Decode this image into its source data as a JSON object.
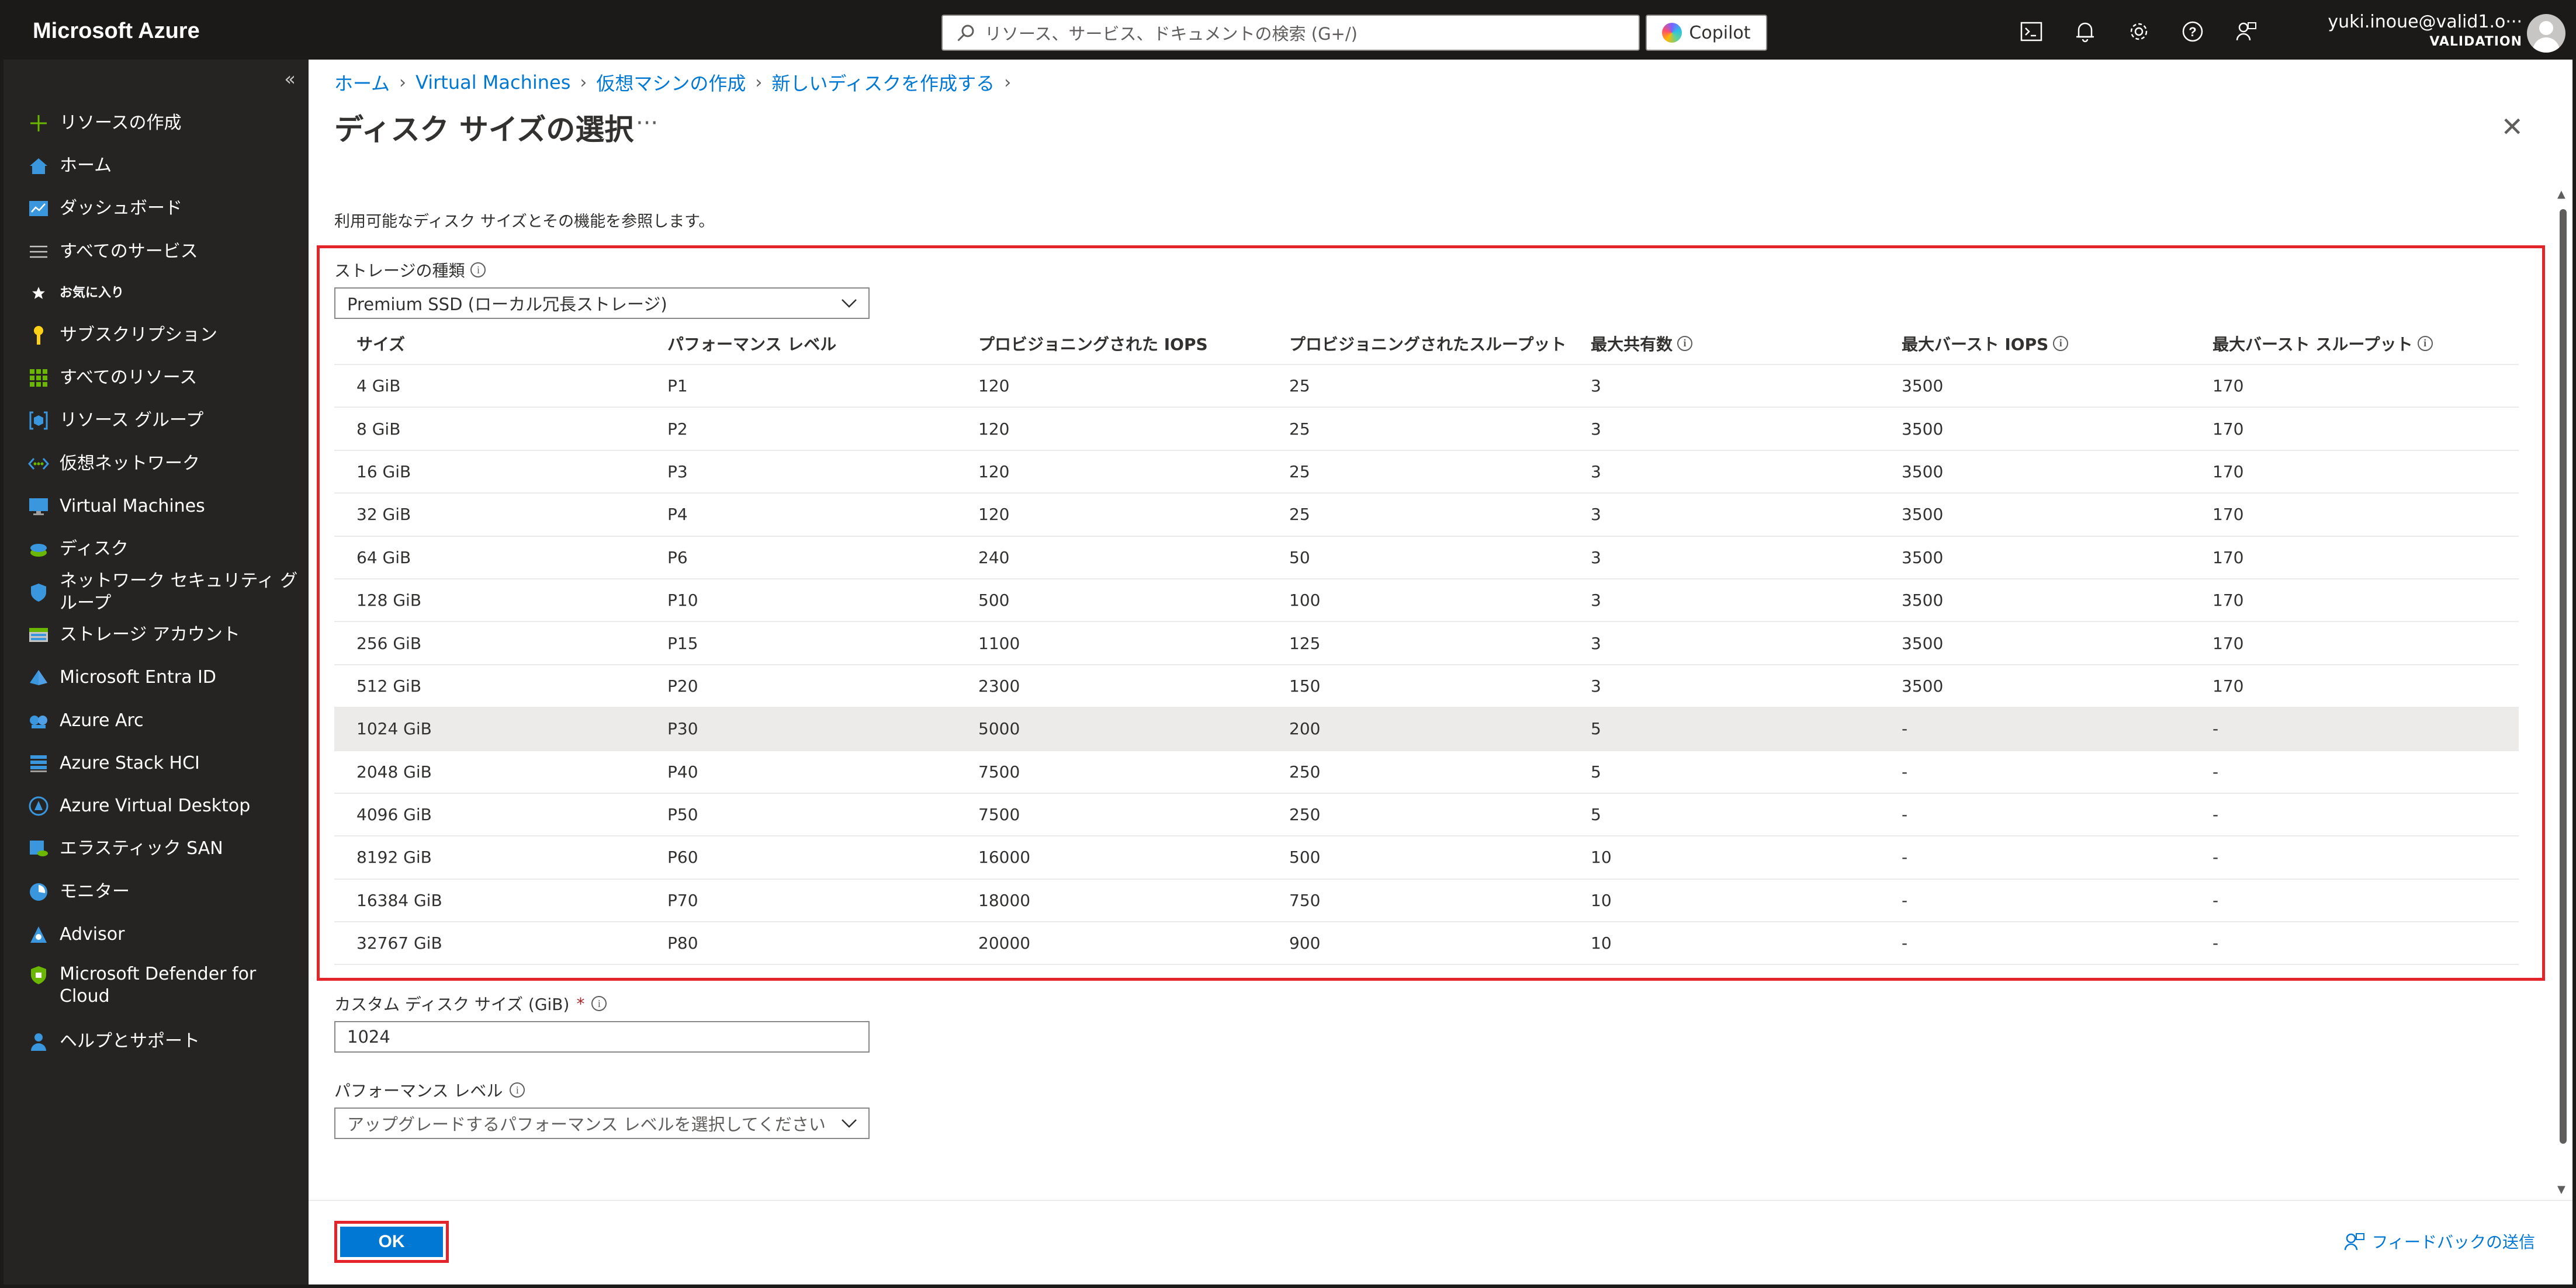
{
  "topbar": {
    "brand": "Microsoft Azure",
    "search_placeholder": "リソース、サービス、ドキュメントの検索 (G+/)",
    "copilot_label": "Copilot",
    "user_name": "yuki.inoue@valid1.o···",
    "user_directory": "VALIDATION"
  },
  "sidebar": {
    "collapse_glyph": "«",
    "items": [
      {
        "label": "リソースの作成",
        "icon": "plus-icon"
      },
      {
        "label": "ホーム",
        "icon": "home-icon"
      },
      {
        "label": "ダッシュボード",
        "icon": "dashboard-icon"
      },
      {
        "label": "すべてのサービス",
        "icon": "list-icon"
      },
      {
        "label": "お気に入り",
        "icon": "star-icon"
      },
      {
        "label": "サブスクリプション",
        "icon": "key-icon"
      },
      {
        "label": "すべてのリソース",
        "icon": "grid-icon"
      },
      {
        "label": "リソース グループ",
        "icon": "resource-group-icon"
      },
      {
        "label": "仮想ネットワーク",
        "icon": "vnet-icon"
      },
      {
        "label": "Virtual Machines",
        "icon": "vm-icon"
      },
      {
        "label": "ディスク",
        "icon": "disk-icon"
      },
      {
        "label": "ネットワーク セキュリティ グループ",
        "icon": "shield-icon"
      },
      {
        "label": "ストレージ アカウント",
        "icon": "storage-icon"
      },
      {
        "label": "Microsoft Entra ID",
        "icon": "entra-icon"
      },
      {
        "label": "Azure Arc",
        "icon": "arc-icon"
      },
      {
        "label": "Azure Stack HCI",
        "icon": "stack-hci-icon"
      },
      {
        "label": "Azure Virtual Desktop",
        "icon": "virtual-desktop-icon"
      },
      {
        "label": "エラスティック SAN",
        "icon": "elastic-san-icon"
      },
      {
        "label": "モニター",
        "icon": "monitor-icon"
      },
      {
        "label": "Advisor",
        "icon": "advisor-icon"
      },
      {
        "label": "Microsoft Defender for Cloud",
        "icon": "defender-icon"
      },
      {
        "label": "ヘルプとサポート",
        "icon": "help-support-icon"
      }
    ]
  },
  "breadcrumb": [
    "ホーム",
    "Virtual Machines",
    "仮想マシンの作成",
    "新しいディスクを作成する"
  ],
  "page": {
    "title": "ディスク サイズの選択",
    "more": "···",
    "description": "利用可能なディスク サイズとその機能を参照します。"
  },
  "storage": {
    "label": "ストレージの種類",
    "selected": "Premium SSD (ローカル冗長ストレージ)"
  },
  "table": {
    "headers": [
      "サイズ",
      "パフォーマンス レベル",
      "プロビジョニングされた IOPS",
      "プロビジョニングされたスループット",
      "最大共有数",
      "最大バースト IOPS",
      "最大バースト スループット"
    ],
    "rows": [
      [
        "4 GiB",
        "P1",
        "120",
        "25",
        "3",
        "3500",
        "170"
      ],
      [
        "8 GiB",
        "P2",
        "120",
        "25",
        "3",
        "3500",
        "170"
      ],
      [
        "16 GiB",
        "P3",
        "120",
        "25",
        "3",
        "3500",
        "170"
      ],
      [
        "32 GiB",
        "P4",
        "120",
        "25",
        "3",
        "3500",
        "170"
      ],
      [
        "64 GiB",
        "P6",
        "240",
        "50",
        "3",
        "3500",
        "170"
      ],
      [
        "128 GiB",
        "P10",
        "500",
        "100",
        "3",
        "3500",
        "170"
      ],
      [
        "256 GiB",
        "P15",
        "1100",
        "125",
        "3",
        "3500",
        "170"
      ],
      [
        "512 GiB",
        "P20",
        "2300",
        "150",
        "3",
        "3500",
        "170"
      ],
      [
        "1024 GiB",
        "P30",
        "5000",
        "200",
        "5",
        "-",
        "-"
      ],
      [
        "2048 GiB",
        "P40",
        "7500",
        "250",
        "5",
        "-",
        "-"
      ],
      [
        "4096 GiB",
        "P50",
        "7500",
        "250",
        "5",
        "-",
        "-"
      ],
      [
        "8192 GiB",
        "P60",
        "16000",
        "500",
        "10",
        "-",
        "-"
      ],
      [
        "16384 GiB",
        "P70",
        "18000",
        "750",
        "10",
        "-",
        "-"
      ],
      [
        "32767 GiB",
        "P80",
        "20000",
        "900",
        "10",
        "-",
        "-"
      ]
    ],
    "selected_row": 8
  },
  "custom_size": {
    "label": "カスタム ディスク サイズ (GiB)",
    "required": "*",
    "value": "1024"
  },
  "performance": {
    "label": "パフォーマンス レベル",
    "placeholder": "アップグレードするパフォーマンス レベルを選択してください"
  },
  "footer": {
    "ok_label": "OK",
    "feedback_label": "フィードバックの送信"
  },
  "colors": {
    "accent": "#0078d4",
    "highlight": "#e3242b",
    "topbar": "#1b1a19",
    "sidebar": "#252423"
  }
}
